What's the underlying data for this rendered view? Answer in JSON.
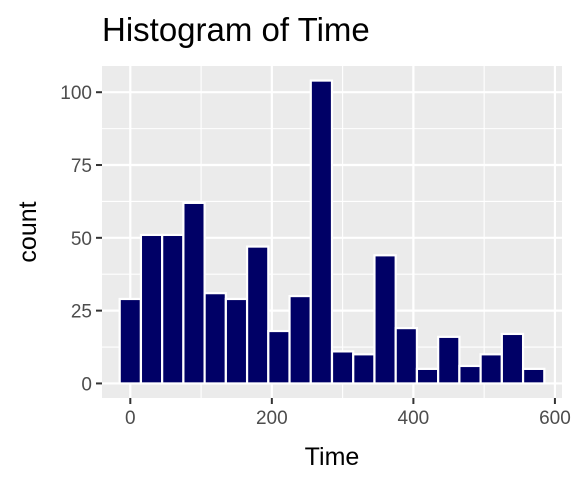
{
  "chart_data": {
    "type": "bar",
    "title": "Histogram of Time",
    "xlabel": "Time",
    "ylabel": "count",
    "xlim": [
      -40,
      610
    ],
    "ylim": [
      -5,
      109
    ],
    "bin_width": 30,
    "bins": [
      {
        "x0": -15,
        "x1": 15,
        "count": 29
      },
      {
        "x0": 15,
        "x1": 45,
        "count": 51
      },
      {
        "x0": 45,
        "x1": 75,
        "count": 51
      },
      {
        "x0": 75,
        "x1": 105,
        "count": 62
      },
      {
        "x0": 105,
        "x1": 135,
        "count": 31
      },
      {
        "x0": 135,
        "x1": 165,
        "count": 29
      },
      {
        "x0": 165,
        "x1": 195,
        "count": 47
      },
      {
        "x0": 195,
        "x1": 225,
        "count": 18
      },
      {
        "x0": 225,
        "x1": 255,
        "count": 30
      },
      {
        "x0": 255,
        "x1": 285,
        "count": 104
      },
      {
        "x0": 285,
        "x1": 315,
        "count": 11
      },
      {
        "x0": 315,
        "x1": 345,
        "count": 10
      },
      {
        "x0": 345,
        "x1": 375,
        "count": 44
      },
      {
        "x0": 375,
        "x1": 405,
        "count": 19
      },
      {
        "x0": 405,
        "x1": 435,
        "count": 5
      },
      {
        "x0": 435,
        "x1": 465,
        "count": 16
      },
      {
        "x0": 465,
        "x1": 495,
        "count": 6
      },
      {
        "x0": 495,
        "x1": 525,
        "count": 10
      },
      {
        "x0": 525,
        "x1": 555,
        "count": 17
      },
      {
        "x0": 555,
        "x1": 585,
        "count": 5
      }
    ],
    "x_ticks": [
      0,
      200,
      400,
      600
    ],
    "x_tick_labels": [
      "0",
      "200",
      "400",
      "600"
    ],
    "y_ticks": [
      0,
      25,
      50,
      75,
      100
    ],
    "y_tick_labels": [
      "0",
      "25",
      "50",
      "75",
      "100"
    ],
    "grid": true,
    "colors": {
      "bar_fill": "#000066",
      "bar_stroke": "#ffffff",
      "panel_background": "#ebebeb",
      "grid_major": "#ffffff",
      "tick_label": "#4d4d4d",
      "tick_mark": "#333333"
    }
  }
}
